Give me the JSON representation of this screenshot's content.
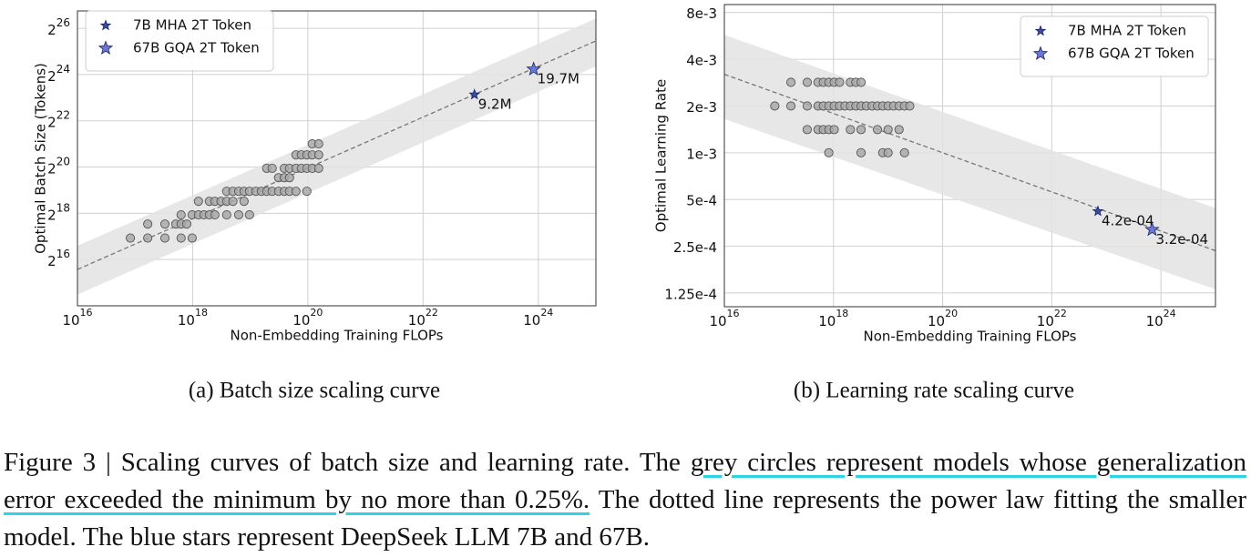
{
  "chart_data": [
    {
      "type": "scatter",
      "xlog": true,
      "ylog": true,
      "grid": true,
      "legend": "upper left",
      "caption": "(a)  Batch size scaling curve",
      "xlabel": "Non-Embedding Training FLOPs",
      "ylabel": "Optimal Batch Size (Tokens)",
      "xlim": [
        1e+16,
        1e+25
      ],
      "ylim": [
        16384,
        113000000
      ],
      "xticks": [
        {
          "value": 1e+16,
          "label": "10^16"
        },
        {
          "value": 1e+18,
          "label": "10^18"
        },
        {
          "value": 1e+20,
          "label": "10^20"
        },
        {
          "value": 1e+22,
          "label": "10^22"
        },
        {
          "value": 1e+24,
          "label": "10^24"
        }
      ],
      "yticks": [
        {
          "value": 65536,
          "label": "2^16"
        },
        {
          "value": 262144,
          "label": "2^18"
        },
        {
          "value": 1048576,
          "label": "2^20"
        },
        {
          "value": 4194304,
          "label": "2^22"
        },
        {
          "value": 16777216,
          "label": "2^24"
        },
        {
          "value": 67108864,
          "label": "2^26"
        }
      ],
      "band": {
        "color": "#e3e3e3",
        "x": [
          1e+16,
          1e+25
        ],
        "lower": [
          23000,
          21400000
        ],
        "upper": [
          99000,
          90000000
        ]
      },
      "fit": {
        "color": "#777777",
        "x": [
          1e+16,
          1e+25
        ],
        "values": [
          48700,
          46000000
        ]
      },
      "series": [
        {
          "color": "#a9a9a9",
          "x": [
            8.3e+16,
            1.66e+17,
            1.66e+17,
            3.3e+17,
            3.3e+17,
            5.1e+17,
            6.3e+17,
            7.9e+17,
            6.3e+17,
            9.8e+17,
            6.3e+17,
            9.8e+17,
            1.26e+18,
            1.26e+18,
            1.57e+18,
            1.95e+18,
            1.95e+18,
            2.43e+18,
            2.43e+18,
            3.1e+18,
            3.9e+18,
            3.9e+18,
            3.9e+18,
            5e+18,
            5e+18,
            6.3e+18,
            6.3e+18,
            7.8e+18,
            7.8e+18,
            9.7e+18,
            9.7e+18,
            1.25e+19,
            1.56e+19,
            1.93e+19,
            1.93e+19,
            2.4e+19,
            2.4e+19,
            3.1e+19,
            3.1e+19,
            3.9e+19,
            3.9e+19,
            3.9e+19,
            4.8e+19,
            4.8e+19,
            4.8e+19,
            6.2e+19,
            6.2e+19,
            6.2e+19,
            7.7e+19,
            7.7e+19,
            9.6e+19,
            9.6e+19,
            9.6e+19,
            1.19e+20,
            1.19e+20,
            1.19e+20,
            1.54e+20,
            1.54e+20,
            1.54e+20
          ],
          "values": [
            125000,
            190000,
            125000,
            190000,
            125000,
            190000,
            190000,
            190000,
            125000,
            125000,
            250000,
            250000,
            250000,
            376000,
            250000,
            250000,
            376000,
            376000,
            250000,
            376000,
            507000,
            376000,
            250000,
            507000,
            376000,
            507000,
            250000,
            507000,
            376000,
            507000,
            250000,
            507000,
            507000,
            507000,
            1010000,
            1010000,
            507000,
            762000,
            507000,
            1010000,
            762000,
            507000,
            1010000,
            762000,
            507000,
            1510000,
            1010000,
            507000,
            1510000,
            1010000,
            1510000,
            1010000,
            507000,
            2100000,
            1510000,
            1010000,
            2100000,
            1510000,
            1010000
          ]
        },
        {
          "name": "7B MHA 2T Token",
          "color": "#3b4aa8",
          "x": [
            7.8e+22
          ],
          "values": [
            9200000
          ],
          "value_labels": [
            "9.2M"
          ]
        },
        {
          "name": "67B GQA 2T Token",
          "color": "#6a78d8",
          "x": [
            8.3e+23
          ],
          "values": [
            19700000
          ],
          "value_labels": [
            "19.7M"
          ]
        }
      ]
    },
    {
      "type": "scatter",
      "xlog": true,
      "ylog": true,
      "grid": true,
      "legend": "upper right",
      "caption": "(b)  Learning rate scaling curve",
      "xlabel": "Non-Embedding Training FLOPs",
      "ylabel": "Optimal Learning Rate",
      "xlim": [
        1e+16,
        1e+25
      ],
      "ylim": [
        0.000102,
        0.009
      ],
      "xticks": [
        {
          "value": 1e+16,
          "label": "10^16"
        },
        {
          "value": 1e+18,
          "label": "10^18"
        },
        {
          "value": 1e+20,
          "label": "10^20"
        },
        {
          "value": 1e+22,
          "label": "10^22"
        },
        {
          "value": 1e+24,
          "label": "10^24"
        }
      ],
      "yticks": [
        {
          "value": 0.000125,
          "label": "1.25e-4"
        },
        {
          "value": 0.00025,
          "label": "2.5e-4"
        },
        {
          "value": 0.0005,
          "label": "5e-4"
        },
        {
          "value": 0.001,
          "label": "1e-3"
        },
        {
          "value": 0.002,
          "label": "2e-3"
        },
        {
          "value": 0.004,
          "label": "4e-3"
        },
        {
          "value": 0.008,
          "label": "8e-3"
        }
      ],
      "band": {
        "color": "#e3e3e3",
        "x": [
          1e+16,
          1e+25
        ],
        "lower": [
          0.00165,
          0.000132
        ],
        "upper": [
          0.00574,
          0.00044
        ]
      },
      "fit": {
        "color": "#777777",
        "x": [
          1e+16,
          1e+25
        ],
        "values": [
          0.0032,
          0.000234
        ]
      },
      "series": [
        {
          "color": "#a9a9a9",
          "x": [
            8.4e+16,
            1.66e+17,
            1.66e+17,
            3.3e+17,
            3.3e+17,
            3.3e+17,
            5.2e+17,
            5.2e+17,
            5.2e+17,
            6.5e+17,
            6.5e+17,
            6.5e+17,
            8.2e+17,
            8.2e+17,
            8.2e+17,
            8.2e+17,
            1.03e+18,
            1.03e+18,
            1.03e+18,
            1.29e+18,
            1.29e+18,
            1.62e+18,
            2.04e+18,
            2.04e+18,
            2.04e+18,
            2.57e+18,
            2.57e+18,
            3.2e+18,
            3.2e+18,
            3.2e+18,
            3.2e+18,
            4e+18,
            5.1e+18,
            6.4e+18,
            6.4e+18,
            8e+18,
            8e+18,
            1e+19,
            1e+19,
            1e+19,
            1.26e+19,
            1.59e+19,
            1.59e+19,
            2e+19,
            2e+19,
            2.5e+19
          ],
          "values": [
            0.002,
            0.00284,
            0.002,
            0.00284,
            0.002,
            0.00141,
            0.00284,
            0.002,
            0.00141,
            0.00284,
            0.002,
            0.00141,
            0.00284,
            0.002,
            0.00141,
            0.001,
            0.00284,
            0.002,
            0.00141,
            0.00284,
            0.002,
            0.002,
            0.00284,
            0.002,
            0.00141,
            0.00284,
            0.002,
            0.00284,
            0.002,
            0.00141,
            0.001,
            0.002,
            0.002,
            0.002,
            0.00141,
            0.002,
            0.001,
            0.002,
            0.00141,
            0.001,
            0.002,
            0.002,
            0.00141,
            0.002,
            0.001,
            0.002
          ]
        },
        {
          "name": "7B MHA 2T Token",
          "color": "#3b4aa8",
          "x": [
            7e+22
          ],
          "values": [
            0.00042
          ],
          "value_labels": [
            "4.2e-04"
          ]
        },
        {
          "name": "67B GQA 2T Token",
          "color": "#6a78d8",
          "x": [
            6.9e+23
          ],
          "values": [
            0.00032
          ],
          "value_labels": [
            "3.2e-04"
          ]
        }
      ]
    }
  ],
  "figure_caption": {
    "lead": "Figure 3 | Scaling curves of batch size and learning rate. The ",
    "highlighted": "grey circles represent models whose generalization error exceeded the minimum by no more than 0.25%.",
    "rest": " The dotted line represents the power law fitting the smaller model. The blue stars represent DeepSeek LLM 7B and 67B."
  }
}
